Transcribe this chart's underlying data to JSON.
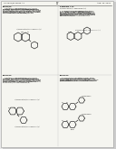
{
  "bg_color": "#e8e8e8",
  "page_bg": "#f5f5f0",
  "text_color": "#1a1a1a",
  "header_left": "US 2012/0214815 A1",
  "header_right": "Aug. 23, 2012",
  "page_num": "17",
  "border_color": "#999999",
  "line_color": "#333333",
  "font_gray": "#444444",
  "shadow_color": "#cccccc"
}
